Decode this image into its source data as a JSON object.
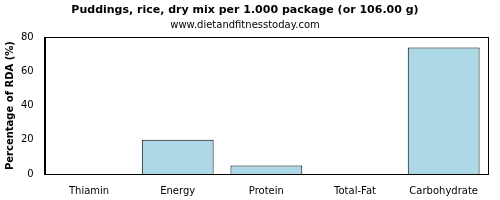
{
  "chart_data": {
    "type": "bar",
    "title": "Puddings, rice, dry mix per 1.000 package (or 106.00 g)",
    "subtitle": "www.dietandfitnesstoday.com",
    "y_label": "Percentage of RDA (%)",
    "categories": [
      "Thiamin",
      "Energy",
      "Protein",
      "Total-Fat",
      "Carbohydrate"
    ],
    "values": [
      0,
      20,
      5,
      0,
      74
    ],
    "color": "#add8e6",
    "ylim": [
      0,
      80
    ],
    "yticks": [
      0,
      20,
      40,
      60,
      80
    ],
    "grid": false
  }
}
